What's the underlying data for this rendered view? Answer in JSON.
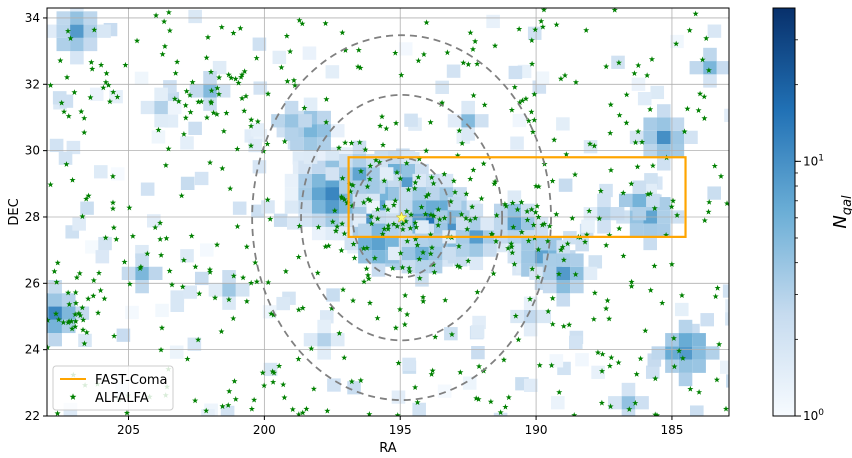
{
  "chart_data": {
    "type": "heatmap",
    "title": "",
    "xlabel": "RA",
    "ylabel": "DEC",
    "xlim": [
      208,
      182.9
    ],
    "ylim": [
      22,
      34.3
    ],
    "x_inverted": true,
    "grid": true,
    "xticks": [
      205,
      200,
      195,
      190,
      185
    ],
    "xtick_labels": [
      "205",
      "200",
      "195",
      "190",
      "185"
    ],
    "yticks": [
      22,
      24,
      26,
      28,
      30,
      32,
      34
    ],
    "ytick_labels": [
      "22",
      "24",
      "26",
      "28",
      "30",
      "32",
      "34"
    ],
    "colorbar": {
      "label": "N_gal",
      "label_main": "N",
      "label_sub": "gal",
      "scale": "log",
      "range": [
        1,
        40
      ],
      "ticks": [
        {
          "value": 1,
          "base": "10",
          "exp": "0"
        },
        {
          "value": 10,
          "base": "10",
          "exp": "1"
        }
      ],
      "colors": [
        "#f7fbff",
        "#c6dbef",
        "#6baed6",
        "#2171b5",
        "#08306b"
      ]
    },
    "center": {
      "ra": 194.95,
      "dec": 27.98,
      "marker": "yellow-star"
    },
    "circles": [
      {
        "radius_deg": 1.8,
        "style": "dashed"
      },
      {
        "radius_deg": 3.7,
        "style": "dashed"
      },
      {
        "radius_deg": 5.5,
        "style": "dashed"
      }
    ],
    "fast_coma_box": {
      "ra_min": 184.5,
      "ra_max": 196.9,
      "dec_min": 27.4,
      "dec_max": 29.8,
      "color": "#ffa500"
    },
    "galaxy_density_cells": [
      {
        "ra": 195.0,
        "dec": 27.9,
        "count": 40
      },
      {
        "ra": 195.5,
        "dec": 28.2,
        "count": 28
      },
      {
        "ra": 194.5,
        "dec": 27.8,
        "count": 26
      },
      {
        "ra": 195.2,
        "dec": 28.6,
        "count": 20
      },
      {
        "ra": 196.2,
        "dec": 28.3,
        "count": 16
      },
      {
        "ra": 193.8,
        "dec": 27.9,
        "count": 15
      },
      {
        "ra": 196.8,
        "dec": 28.9,
        "count": 12
      },
      {
        "ra": 197.5,
        "dec": 28.7,
        "count": 14
      },
      {
        "ra": 195.8,
        "dec": 27.2,
        "count": 10
      },
      {
        "ra": 193.0,
        "dec": 27.6,
        "count": 9
      },
      {
        "ra": 194.2,
        "dec": 26.9,
        "count": 8
      },
      {
        "ra": 196.5,
        "dec": 29.3,
        "count": 8
      },
      {
        "ra": 192.2,
        "dec": 27.4,
        "count": 7
      },
      {
        "ra": 190.8,
        "dec": 27.8,
        "count": 7
      },
      {
        "ra": 189.8,
        "dec": 26.8,
        "count": 9
      },
      {
        "ra": 189.0,
        "dec": 26.3,
        "count": 8
      },
      {
        "ra": 185.8,
        "dec": 28.0,
        "count": 8
      },
      {
        "ra": 186.2,
        "dec": 28.5,
        "count": 6
      },
      {
        "ra": 185.3,
        "dec": 30.4,
        "count": 9
      },
      {
        "ra": 184.5,
        "dec": 23.9,
        "count": 11
      },
      {
        "ra": 207.7,
        "dec": 25.1,
        "count": 10
      },
      {
        "ra": 206.9,
        "dec": 33.6,
        "count": 7
      },
      {
        "ra": 198.3,
        "dec": 30.6,
        "count": 7
      },
      {
        "ra": 199.0,
        "dec": 30.9,
        "count": 5
      },
      {
        "ra": 202.0,
        "dec": 31.8,
        "count": 5
      },
      {
        "ra": 192.5,
        "dec": 30.9,
        "count": 4
      },
      {
        "ra": 204.5,
        "dec": 26.3,
        "count": 5
      },
      {
        "ra": 183.6,
        "dec": 32.5,
        "count": 5
      },
      {
        "ra": 186.6,
        "dec": 22.4,
        "count": 4
      },
      {
        "ra": 201.3,
        "dec": 25.8,
        "count": 4
      },
      {
        "ra": 187.5,
        "dec": 28.1,
        "count": 4
      },
      {
        "ra": 190.2,
        "dec": 25.0,
        "count": 3
      },
      {
        "ra": 197.8,
        "dec": 24.3,
        "count": 3
      },
      {
        "ra": 203.8,
        "dec": 31.3,
        "count": 3
      }
    ],
    "series": [
      {
        "name": "FAST-Coma",
        "style": "line",
        "color": "#ffa500"
      },
      {
        "name": "ALFALFA",
        "style": "star",
        "color": "#008000"
      }
    ],
    "alfalfa_cluster_density_hint": [
      {
        "ra": 195.0,
        "dec": 28.0,
        "spread": 2.5,
        "n": 90
      },
      {
        "ra": 201.5,
        "dec": 31.5,
        "spread": 1.5,
        "n": 30
      },
      {
        "ra": 207.0,
        "dec": 25.0,
        "spread": 0.8,
        "n": 20
      },
      {
        "ra": 190.0,
        "dec": 27.5,
        "spread": 2.0,
        "n": 40
      }
    ],
    "legend": {
      "position": "lower-left"
    }
  }
}
